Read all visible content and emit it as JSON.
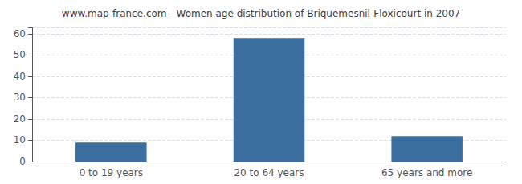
{
  "chart_data": {
    "type": "bar",
    "title": "www.map-france.com - Women age distribution of Briquemesnil-Floxicourt in 2007",
    "categories": [
      "0 to 19 years",
      "20 to 64 years",
      "65 years and more"
    ],
    "values": [
      9,
      58,
      12
    ],
    "color": "#3a6e9f",
    "ylim": [
      0,
      63
    ],
    "yticks": [
      0,
      10,
      20,
      30,
      40,
      50,
      60
    ],
    "grid": true
  }
}
